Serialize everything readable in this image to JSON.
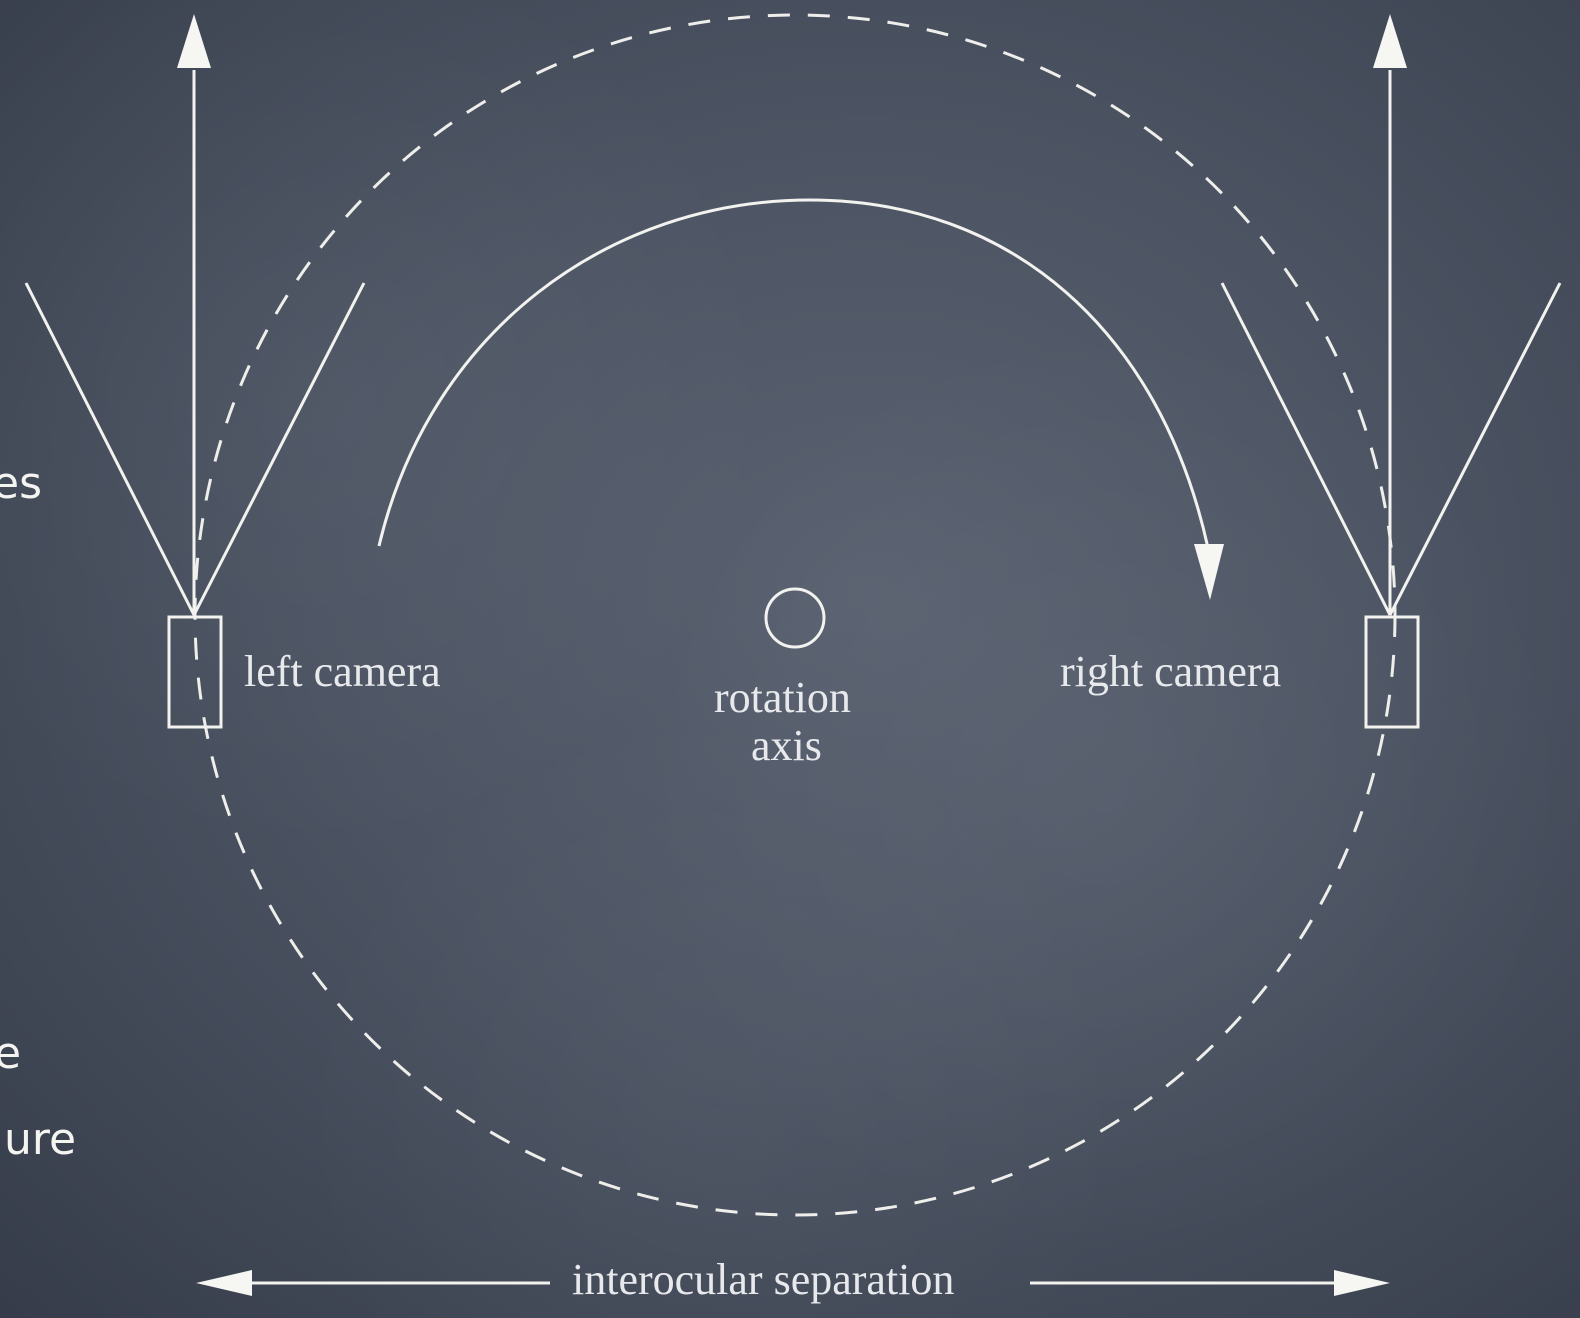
{
  "background": {
    "board_color": "#4c5463",
    "chalk_color": "#f4f4f0"
  },
  "side_text": [
    {
      "text": "es"
    },
    {
      "text": "e"
    },
    {
      "text": "ure"
    }
  ],
  "labels": {
    "left_camera": "left camera",
    "right_camera": "right camera",
    "rotation_line1": "rotation",
    "rotation_line2": "axis",
    "interocular": "interocular separation"
  },
  "icons": {
    "left_camera": "camera-rect-icon",
    "right_camera": "camera-rect-icon",
    "rotation_axis": "circle-icon"
  }
}
